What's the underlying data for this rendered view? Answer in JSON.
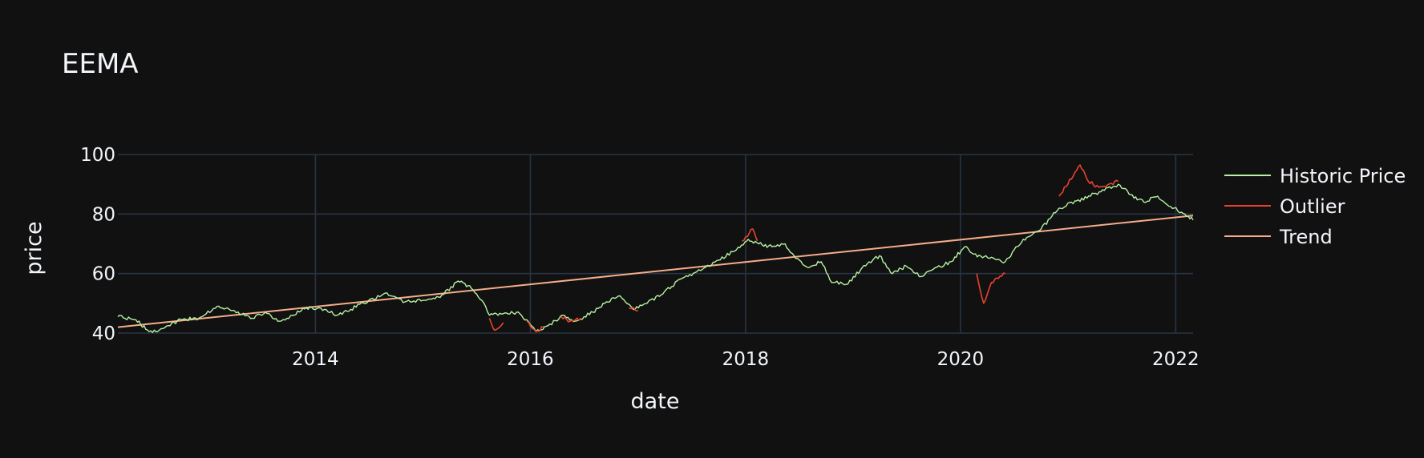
{
  "chart_data": {
    "type": "line",
    "title": "EEMA",
    "xlabel": "date",
    "ylabel": "price",
    "xlim": [
      "2012-03-01",
      "2022-03-01"
    ],
    "ylim": [
      40,
      100
    ],
    "xticks": [
      "2014",
      "2016",
      "2018",
      "2020",
      "2022"
    ],
    "yticks": [
      40,
      60,
      80,
      100
    ],
    "grid": true,
    "legend_position": "right",
    "colors": {
      "historic": "#b5f2a4",
      "outlier": "#e8432f",
      "trend": "#f5ad8b",
      "background": "#111111",
      "grid": "#283442"
    },
    "series": [
      {
        "name": "Historic Price",
        "kind": "line",
        "points": [
          [
            "2012-03-01",
            45.5
          ],
          [
            "2012-05-01",
            44.5
          ],
          [
            "2012-06-15",
            40.5
          ],
          [
            "2012-08-01",
            41.5
          ],
          [
            "2012-10-01",
            44.5
          ],
          [
            "2012-12-01",
            45.0
          ],
          [
            "2013-02-01",
            49.0
          ],
          [
            "2013-04-01",
            47.5
          ],
          [
            "2013-06-01",
            45.0
          ],
          [
            "2013-07-15",
            47.0
          ],
          [
            "2013-09-01",
            44.0
          ],
          [
            "2013-10-15",
            46.0
          ],
          [
            "2013-12-01",
            48.5
          ],
          [
            "2014-02-01",
            48.0
          ],
          [
            "2014-03-15",
            46.0
          ],
          [
            "2014-05-01",
            48.0
          ],
          [
            "2014-07-01",
            51.0
          ],
          [
            "2014-09-01",
            53.5
          ],
          [
            "2014-11-01",
            50.5
          ],
          [
            "2015-01-01",
            51.0
          ],
          [
            "2015-03-01",
            52.0
          ],
          [
            "2015-05-01",
            57.5
          ],
          [
            "2015-06-15",
            55.0
          ],
          [
            "2015-07-20",
            51.0
          ],
          [
            "2015-08-15",
            46.0
          ],
          [
            "2015-10-01",
            46.5
          ],
          [
            "2015-11-15",
            47.0
          ],
          [
            "2015-12-20",
            44.5
          ],
          [
            "2016-01-20",
            40.5
          ],
          [
            "2016-03-01",
            42.5
          ],
          [
            "2016-04-20",
            46.0
          ],
          [
            "2016-06-01",
            44.0
          ],
          [
            "2016-08-01",
            47.0
          ],
          [
            "2016-09-15",
            50.5
          ],
          [
            "2016-11-01",
            52.5
          ],
          [
            "2016-12-15",
            48.0
          ],
          [
            "2017-02-01",
            50.0
          ],
          [
            "2017-04-01",
            54.0
          ],
          [
            "2017-06-01",
            58.5
          ],
          [
            "2017-08-01",
            61.0
          ],
          [
            "2017-10-01",
            64.5
          ],
          [
            "2017-12-01",
            68.0
          ],
          [
            "2018-01-10",
            71.5
          ],
          [
            "2018-02-15",
            70.0
          ],
          [
            "2018-04-01",
            69.0
          ],
          [
            "2018-05-15",
            70.0
          ],
          [
            "2018-06-15",
            66.0
          ],
          [
            "2018-08-01",
            62.0
          ],
          [
            "2018-09-15",
            64.0
          ],
          [
            "2018-10-20",
            57.0
          ],
          [
            "2018-12-15",
            56.5
          ],
          [
            "2019-02-01",
            62.0
          ],
          [
            "2019-04-01",
            66.0
          ],
          [
            "2019-05-15",
            60.0
          ],
          [
            "2019-07-01",
            62.5
          ],
          [
            "2019-08-20",
            59.0
          ],
          [
            "2019-10-01",
            61.5
          ],
          [
            "2019-12-01",
            64.0
          ],
          [
            "2020-01-15",
            69.0
          ],
          [
            "2020-02-15",
            66.5
          ],
          [
            "2020-06-01",
            64.0
          ],
          [
            "2020-08-01",
            71.5
          ],
          [
            "2020-10-01",
            75.0
          ],
          [
            "2020-12-01",
            82.0
          ],
          [
            "2021-06-20",
            90.0
          ],
          [
            "2021-08-01",
            86.5
          ],
          [
            "2021-09-15",
            84.0
          ],
          [
            "2021-11-01",
            86.0
          ],
          [
            "2021-12-15",
            82.5
          ],
          [
            "2022-02-01",
            80.0
          ],
          [
            "2022-03-01",
            78.0
          ]
        ]
      },
      {
        "name": "Outlier",
        "kind": "segments",
        "segments": [
          [
            [
              "2015-08-15",
              45.0
            ],
            [
              "2015-09-01",
              41.0
            ],
            [
              "2015-10-01",
              43.5
            ]
          ],
          [
            [
              "2015-12-20",
              44.0
            ],
            [
              "2016-01-20",
              40.5
            ],
            [
              "2016-02-15",
              42.0
            ]
          ],
          [
            [
              "2016-04-15",
              45.5
            ],
            [
              "2016-05-15",
              44.0
            ],
            [
              "2016-06-20",
              45.0
            ]
          ],
          [
            [
              "2016-12-01",
              48.5
            ],
            [
              "2017-01-01",
              47.5
            ]
          ],
          [
            [
              "2017-12-20",
              71.0
            ],
            [
              "2018-01-25",
              75.0
            ],
            [
              "2018-02-10",
              71.0
            ]
          ],
          [
            [
              "2020-02-25",
              60.0
            ],
            [
              "2020-03-20",
              50.0
            ],
            [
              "2020-04-15",
              57.0
            ],
            [
              "2020-06-01",
              60.0
            ]
          ],
          [
            [
              "2020-12-01",
              86.0
            ],
            [
              "2021-02-10",
              96.5
            ],
            [
              "2021-03-10",
              91.0
            ],
            [
              "2021-04-15",
              89.0
            ],
            [
              "2021-06-20",
              91.0
            ]
          ]
        ]
      },
      {
        "name": "Trend",
        "kind": "line",
        "points": [
          [
            "2012-03-01",
            42.0
          ],
          [
            "2022-03-01",
            79.5
          ]
        ]
      }
    ]
  }
}
